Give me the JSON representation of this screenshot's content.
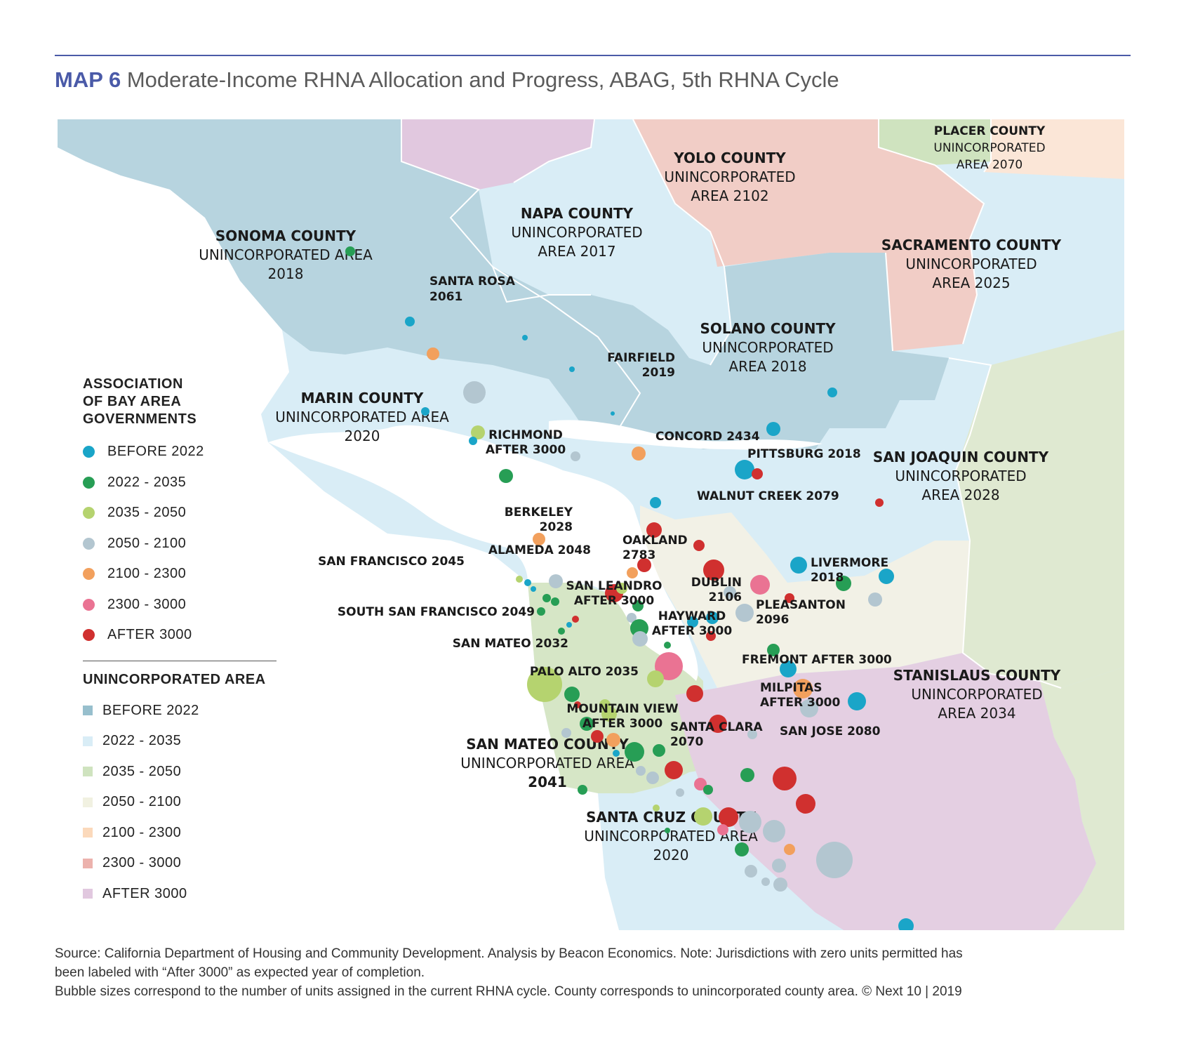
{
  "title": {
    "map_no": "MAP 6",
    "text": "Moderate-Income RHNA Allocation and Progress, ABAG, 5th RHNA Cycle"
  },
  "legend": {
    "abag_title": [
      "ASSOCIATION",
      "OF BAY AREA",
      "GOVERNMENTS"
    ],
    "abag_items": [
      {
        "label": "BEFORE 2022",
        "color": "#1aa5c8"
      },
      {
        "label": "2022 - 2035",
        "color": "#279e55"
      },
      {
        "label": "2035 - 2050",
        "color": "#b5d36f"
      },
      {
        "label": "2050 - 2100",
        "color": "#b3c6d0"
      },
      {
        "label": "2100 - 2300",
        "color": "#f2a05d"
      },
      {
        "label": "2300 - 3000",
        "color": "#ea7393"
      },
      {
        "label": "AFTER 3000",
        "color": "#d0302f"
      }
    ],
    "unincorporated_title": "UNINCORPORATED AREA",
    "unincorporated_items": [
      {
        "label": "BEFORE 2022",
        "color": "#97bfcd"
      },
      {
        "label": "2022 - 2035",
        "color": "#d9edf6"
      },
      {
        "label": "2035 - 2050",
        "color": "#cfe3bf"
      },
      {
        "label": " 2050 - 2100",
        "color": "#f1f1e1"
      },
      {
        "label": "2100 - 2300",
        "color": "#fbd9bb"
      },
      {
        "label": "2300 - 3000",
        "color": "#ecb2ad"
      },
      {
        "label": "AFTER 3000",
        "color": "#e1c8df"
      }
    ]
  },
  "county_labels": [
    {
      "lines": [
        "SONOMA COUNTY",
        "UNINCORPORATED AREA",
        "2018"
      ]
    },
    {
      "lines": [
        "NAPA COUNTY",
        "UNINCORPORATED",
        "AREA 2017"
      ]
    },
    {
      "lines": [
        "YOLO COUNTY",
        "UNINCORPORATED",
        "AREA 2102"
      ]
    },
    {
      "lines": [
        "PLACER COUNTY",
        "UNINCORPORATED",
        "AREA 2070"
      ]
    },
    {
      "lines": [
        "SACRAMENTO COUNTY",
        "UNINCORPORATED",
        "AREA 2025"
      ]
    },
    {
      "lines": [
        "SOLANO COUNTY",
        "UNINCORPORATED",
        "AREA 2018"
      ]
    },
    {
      "lines": [
        "MARIN COUNTY",
        "UNINCORPORATED AREA",
        "2020"
      ]
    },
    {
      "lines": [
        "SAN JOAQUIN COUNTY",
        "UNINCORPORATED",
        "AREA 2028"
      ]
    },
    {
      "lines": [
        "STANISLAUS COUNTY",
        "UNINCORPORATED",
        "AREA 2034"
      ]
    },
    {
      "lines": [
        "SAN MATEO COUNTY",
        "UNINCORPORATED AREA",
        "2041"
      ]
    },
    {
      "lines": [
        "SANTA CRUZ COUNTY",
        "UNINCORPORATED AREA",
        "2020"
      ]
    }
  ],
  "city_labels": [
    {
      "lines": [
        "SANTA ROSA",
        "2061"
      ]
    },
    {
      "lines": [
        "FAIRFIELD",
        "2019"
      ]
    },
    {
      "lines": [
        "RICHMOND",
        "AFTER 3000"
      ]
    },
    {
      "lines": [
        "CONCORD 2434"
      ]
    },
    {
      "lines": [
        "PITTSBURG 2018"
      ]
    },
    {
      "lines": [
        "WALNUT CREEK 2079"
      ]
    },
    {
      "lines": [
        "BERKELEY",
        "2028"
      ]
    },
    {
      "lines": [
        "OAKLAND",
        "2783"
      ]
    },
    {
      "lines": [
        "ALAMEDA 2048"
      ]
    },
    {
      "lines": [
        "SAN FRANCISCO 2045"
      ]
    },
    {
      "lines": [
        "LIVERMORE",
        "2018"
      ]
    },
    {
      "lines": [
        "DUBLIN",
        "2106"
      ]
    },
    {
      "lines": [
        "PLEASANTON",
        "2096"
      ]
    },
    {
      "lines": [
        "SAN LEANDRO",
        "AFTER 3000"
      ]
    },
    {
      "lines": [
        "SOUTH SAN FRANCISCO 2049"
      ]
    },
    {
      "lines": [
        "HAYWARD",
        "AFTER 3000"
      ]
    },
    {
      "lines": [
        "SAN MATEO 2032"
      ]
    },
    {
      "lines": [
        "FREMONT AFTER 3000"
      ]
    },
    {
      "lines": [
        "PALO ALTO 2035"
      ]
    },
    {
      "lines": [
        "MILPITAS",
        "AFTER 3000"
      ]
    },
    {
      "lines": [
        "MOUNTAIN VIEW",
        "AFTER 3000"
      ]
    },
    {
      "lines": [
        "SANTA CLARA",
        "2070"
      ]
    },
    {
      "lines": [
        "SAN JOSE 2080"
      ]
    }
  ],
  "source": {
    "line1": "Source: California Department of Housing and Community Development. Analysis by Beacon Economics. Note: Jurisdictions with zero units permitted has",
    "line2": "been labeled with “After 3000” as expected year of completion.",
    "line3": "Bubble sizes correspond to the number of units assigned in the current RHNA cycle. County corresponds to unincorporated county area.  © Next 10 | 2019"
  }
}
